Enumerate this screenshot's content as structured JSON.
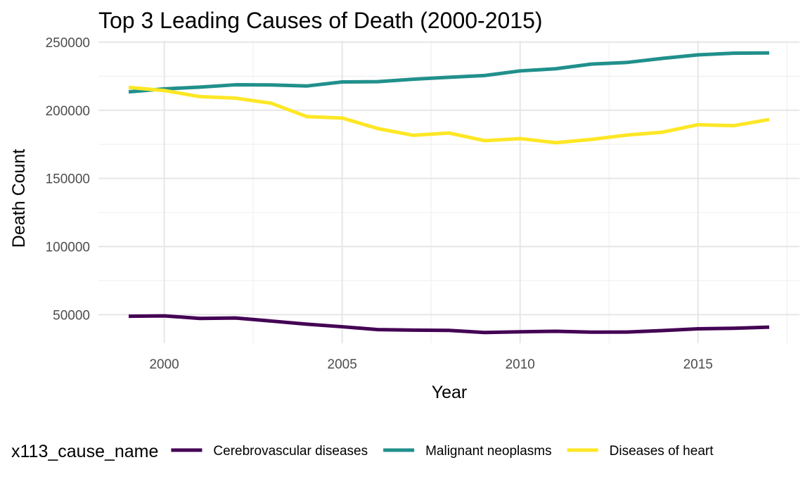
{
  "chart_data": {
    "type": "line",
    "title": "Top 3 Leading Causes of Death (2000-2015)",
    "xlabel": "Year",
    "ylabel": "Death Count",
    "x": [
      1999,
      2000,
      2001,
      2002,
      2003,
      2004,
      2005,
      2006,
      2007,
      2008,
      2009,
      2010,
      2011,
      2012,
      2013,
      2014,
      2015,
      2016,
      2017
    ],
    "xlim": [
      1998.15,
      2017.85
    ],
    "ylim": [
      29000,
      251000
    ],
    "x_ticks": [
      2000,
      2005,
      2010,
      2015
    ],
    "x_tick_labels": [
      "2000",
      "2005",
      "2010",
      "2015"
    ],
    "y_ticks": [
      50000,
      100000,
      150000,
      200000,
      250000
    ],
    "y_tick_labels": [
      "50000",
      "100000",
      "150000",
      "200000",
      "250000"
    ],
    "grid": true,
    "legend": {
      "position": "bottom",
      "title": "x113_cause_name"
    },
    "series": [
      {
        "name": "Cerebrovascular diseases",
        "color": "#440154",
        "values": [
          48800,
          49100,
          47200,
          47500,
          45300,
          43000,
          41100,
          39000,
          38600,
          38400,
          36900,
          37400,
          37800,
          37100,
          37200,
          38300,
          39600,
          40000,
          40800
        ]
      },
      {
        "name": "Malignant neoplasms",
        "color": "#21908C",
        "values": [
          213500,
          215700,
          217000,
          218700,
          218600,
          217800,
          220800,
          221000,
          222800,
          224200,
          225500,
          228900,
          230500,
          233900,
          235100,
          238100,
          240700,
          241900,
          242100
        ]
      },
      {
        "name": "Diseases of heart",
        "color": "#FDE725",
        "values": [
          216800,
          214500,
          210000,
          208900,
          205200,
          195400,
          194300,
          186600,
          181600,
          183300,
          177700,
          179200,
          176200,
          178600,
          181800,
          183900,
          189400,
          188700,
          193200
        ]
      }
    ]
  }
}
